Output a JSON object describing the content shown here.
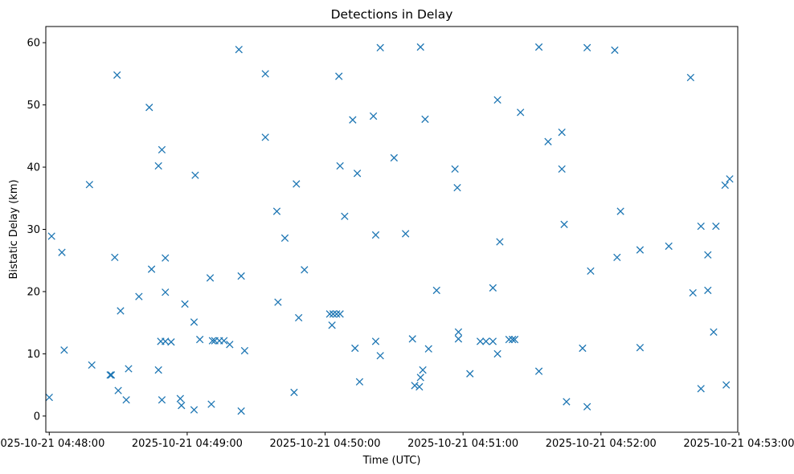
{
  "chart_data": {
    "type": "scatter",
    "title": "Detections in Delay",
    "xlabel": "Time (UTC)",
    "ylabel": "Bistatic Delay (km)",
    "marker": "x",
    "color": "#1f77b4",
    "xlim_seconds": [
      -1.5,
      299.5
    ],
    "ylim": [
      -2.6,
      62.6
    ],
    "x_ticks": [
      {
        "t": 0,
        "label": "2025-10-21 04:48:00"
      },
      {
        "t": 60,
        "label": "2025-10-21 04:49:00"
      },
      {
        "t": 120,
        "label": "2025-10-21 04:50:00"
      },
      {
        "t": 180,
        "label": "2025-10-21 04:51:00"
      },
      {
        "t": 240,
        "label": "2025-10-21 04:52:00"
      },
      {
        "t": 300,
        "label": "2025-10-21 04:53:00"
      }
    ],
    "y_ticks": [
      0,
      10,
      20,
      30,
      40,
      50,
      60
    ],
    "x_unit_note": "x values are seconds after 2025-10-21 04:48:00 UTC",
    "points": [
      [
        0,
        3.0
      ],
      [
        1,
        28.9
      ],
      [
        5.5,
        26.3
      ],
      [
        6.5,
        10.6
      ],
      [
        17.5,
        37.2
      ],
      [
        18.5,
        8.2
      ],
      [
        26.5,
        6.6
      ],
      [
        27,
        6.6
      ],
      [
        28.5,
        25.5
      ],
      [
        29.5,
        54.8
      ],
      [
        30,
        4.1
      ],
      [
        31,
        16.9
      ],
      [
        33.5,
        2.6
      ],
      [
        34.5,
        7.6
      ],
      [
        39,
        19.2
      ],
      [
        43.5,
        49.6
      ],
      [
        44.5,
        23.6
      ],
      [
        47.5,
        40.2
      ],
      [
        47.5,
        7.4
      ],
      [
        48.5,
        12.0
      ],
      [
        49,
        42.8
      ],
      [
        49,
        2.6
      ],
      [
        50.5,
        12.0
      ],
      [
        50.5,
        19.9
      ],
      [
        50.5,
        25.4
      ],
      [
        53,
        11.9
      ],
      [
        57,
        2.8
      ],
      [
        57.5,
        1.7
      ],
      [
        59,
        18.0
      ],
      [
        63,
        15.1
      ],
      [
        63,
        1.0
      ],
      [
        63.5,
        38.7
      ],
      [
        65.5,
        12.3
      ],
      [
        70,
        22.2
      ],
      [
        70.5,
        1.9
      ],
      [
        71,
        12.1
      ],
      [
        72,
        12.1
      ],
      [
        74,
        12.1
      ],
      [
        76,
        12.1
      ],
      [
        78.5,
        11.5
      ],
      [
        82.5,
        58.9
      ],
      [
        83.5,
        22.5
      ],
      [
        83.5,
        0.8
      ],
      [
        85,
        10.5
      ],
      [
        94,
        55.0
      ],
      [
        94,
        44.8
      ],
      [
        99,
        32.9
      ],
      [
        99.5,
        18.3
      ],
      [
        102.5,
        28.6
      ],
      [
        106.5,
        3.8
      ],
      [
        107.5,
        37.3
      ],
      [
        108.5,
        15.8
      ],
      [
        111,
        23.5
      ],
      [
        122,
        16.4
      ],
      [
        123,
        14.6
      ],
      [
        123.5,
        16.4
      ],
      [
        125,
        16.4
      ],
      [
        126,
        54.6
      ],
      [
        126.5,
        40.2
      ],
      [
        126.5,
        16.4
      ],
      [
        128.5,
        32.1
      ],
      [
        132,
        47.6
      ],
      [
        133,
        10.9
      ],
      [
        134,
        39.0
      ],
      [
        135,
        5.5
      ],
      [
        141,
        48.2
      ],
      [
        142,
        29.1
      ],
      [
        142,
        12.0
      ],
      [
        144,
        9.7
      ],
      [
        144,
        59.2
      ],
      [
        150,
        41.5
      ],
      [
        155,
        29.3
      ],
      [
        158,
        12.4
      ],
      [
        159,
        4.9
      ],
      [
        161,
        4.7
      ],
      [
        161.5,
        59.3
      ],
      [
        161.5,
        6.2
      ],
      [
        162.5,
        7.4
      ],
      [
        163.5,
        47.7
      ],
      [
        165,
        10.8
      ],
      [
        168.5,
        20.2
      ],
      [
        176.5,
        39.7
      ],
      [
        177.5,
        36.7
      ],
      [
        178,
        13.5
      ],
      [
        178,
        12.4
      ],
      [
        183,
        6.8
      ],
      [
        187.5,
        12.0
      ],
      [
        190,
        12.0
      ],
      [
        193,
        12.0
      ],
      [
        193,
        20.6
      ],
      [
        195,
        50.8
      ],
      [
        195,
        10.0
      ],
      [
        196,
        28.0
      ],
      [
        200,
        12.3
      ],
      [
        201.5,
        12.3
      ],
      [
        202.5,
        12.3
      ],
      [
        205,
        48.8
      ],
      [
        213,
        59.3
      ],
      [
        213,
        7.2
      ],
      [
        217,
        44.1
      ],
      [
        223,
        45.6
      ],
      [
        223,
        39.7
      ],
      [
        224,
        30.8
      ],
      [
        225,
        2.3
      ],
      [
        232,
        10.9
      ],
      [
        234,
        59.2
      ],
      [
        234,
        1.5
      ],
      [
        235.5,
        23.3
      ],
      [
        246,
        58.8
      ],
      [
        247,
        25.5
      ],
      [
        248.5,
        32.9
      ],
      [
        257,
        26.7
      ],
      [
        257,
        11.0
      ],
      [
        269.5,
        27.3
      ],
      [
        279,
        54.4
      ],
      [
        280,
        19.8
      ],
      [
        283.5,
        30.5
      ],
      [
        283.5,
        4.4
      ],
      [
        286.5,
        25.9
      ],
      [
        286.5,
        20.2
      ],
      [
        289,
        13.5
      ],
      [
        290,
        30.5
      ],
      [
        294,
        37.1
      ],
      [
        294.5,
        5.0
      ],
      [
        296,
        38.1
      ]
    ]
  }
}
